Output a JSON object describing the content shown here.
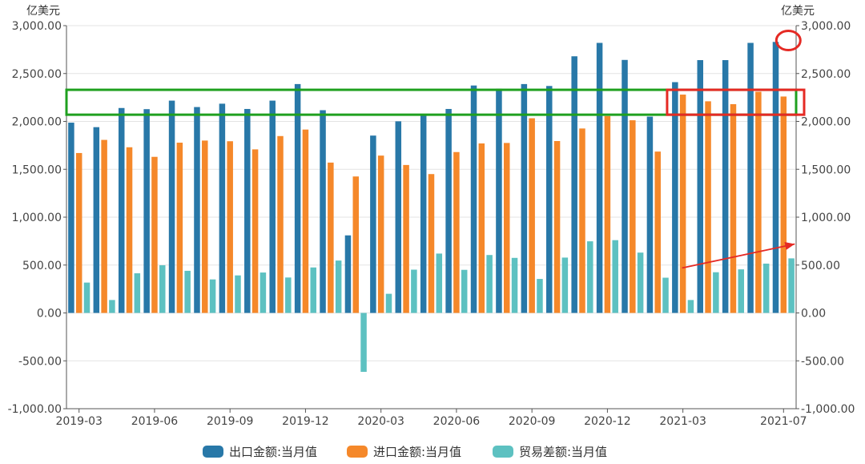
{
  "chart_data": {
    "type": "bar",
    "left_unit": "亿美元",
    "right_unit": "亿美元",
    "ylim": [
      -1000,
      3000
    ],
    "yticks": [
      "3,000.00",
      "2,500.00",
      "2,000.00",
      "1,500.00",
      "1,000.00",
      "500.00",
      "0.00",
      "-500.00",
      "-1,000.00"
    ],
    "ytick_values": [
      3000,
      2500,
      2000,
      1500,
      1000,
      500,
      0,
      -500,
      -1000
    ],
    "categories": [
      "2019-03",
      "2019-04",
      "2019-05",
      "2019-06",
      "2019-07",
      "2019-08",
      "2019-09",
      "2019-10",
      "2019-11",
      "2019-12",
      "2020-01",
      "2020-02",
      "2020-03",
      "2020-04",
      "2020-05",
      "2020-06",
      "2020-07",
      "2020-08",
      "2020-09",
      "2020-10",
      "2020-11",
      "2020-12",
      "2021-01",
      "2021-02",
      "2021-03",
      "2021-04",
      "2021-05",
      "2021-06",
      "2021-07"
    ],
    "xtick_labels": [
      {
        "index": 0,
        "label": "2019-03"
      },
      {
        "index": 3,
        "label": "2019-06"
      },
      {
        "index": 6,
        "label": "2019-09"
      },
      {
        "index": 9,
        "label": "2019-12"
      },
      {
        "index": 12,
        "label": "2020-03"
      },
      {
        "index": 15,
        "label": "2020-06"
      },
      {
        "index": 18,
        "label": "2020-09"
      },
      {
        "index": 21,
        "label": "2020-12"
      },
      {
        "index": 24,
        "label": "2021-03"
      },
      {
        "index": 28,
        "label": "2021-07"
      }
    ],
    "series": [
      {
        "name": "出口金额:当月值",
        "color": "#2878a8",
        "values": [
          1987,
          1940,
          2140,
          2128,
          2217,
          2150,
          2185,
          2130,
          2217,
          2390,
          2117,
          810,
          1852,
          2001,
          2067,
          2130,
          2375,
          2342,
          2390,
          2370,
          2680,
          2820,
          2642,
          2050,
          2410,
          2640,
          2640,
          2820,
          2830
        ]
      },
      {
        "name": "进口金额:当月值",
        "color": "#f5882a",
        "values": [
          1670,
          1807,
          1730,
          1630,
          1778,
          1800,
          1793,
          1708,
          1847,
          1915,
          1570,
          1425,
          1643,
          1545,
          1450,
          1680,
          1770,
          1775,
          2033,
          1795,
          1926,
          2056,
          2012,
          1685,
          2280,
          2210,
          2180,
          2310,
          2260
        ]
      },
      {
        "name": "贸易差额:当月值",
        "color": "#5dc1c1",
        "values": [
          317,
          135,
          414,
          498,
          440,
          350,
          392,
          422,
          370,
          475,
          547,
          -615,
          200,
          452,
          620,
          450,
          605,
          575,
          355,
          578,
          748,
          760,
          630,
          368,
          135,
          425,
          455,
          515,
          570
        ]
      }
    ],
    "grid": true,
    "legend": "bottom-center",
    "annotations": [
      {
        "type": "rectangle",
        "color": "#1fa01f",
        "y_range": [
          2070,
          2330
        ],
        "x_range": "all"
      },
      {
        "type": "rectangle",
        "color": "#e52a24",
        "y_range": [
          2070,
          2330
        ],
        "x_index_range": [
          24,
          28
        ]
      },
      {
        "type": "circle",
        "color": "#e52a24",
        "y": 2820,
        "x_index": 28
      },
      {
        "type": "arrow",
        "color": "#e52a24",
        "from": {
          "x_index": 24,
          "y": 470
        },
        "to": {
          "x_index": 28,
          "y": 720
        }
      }
    ]
  }
}
